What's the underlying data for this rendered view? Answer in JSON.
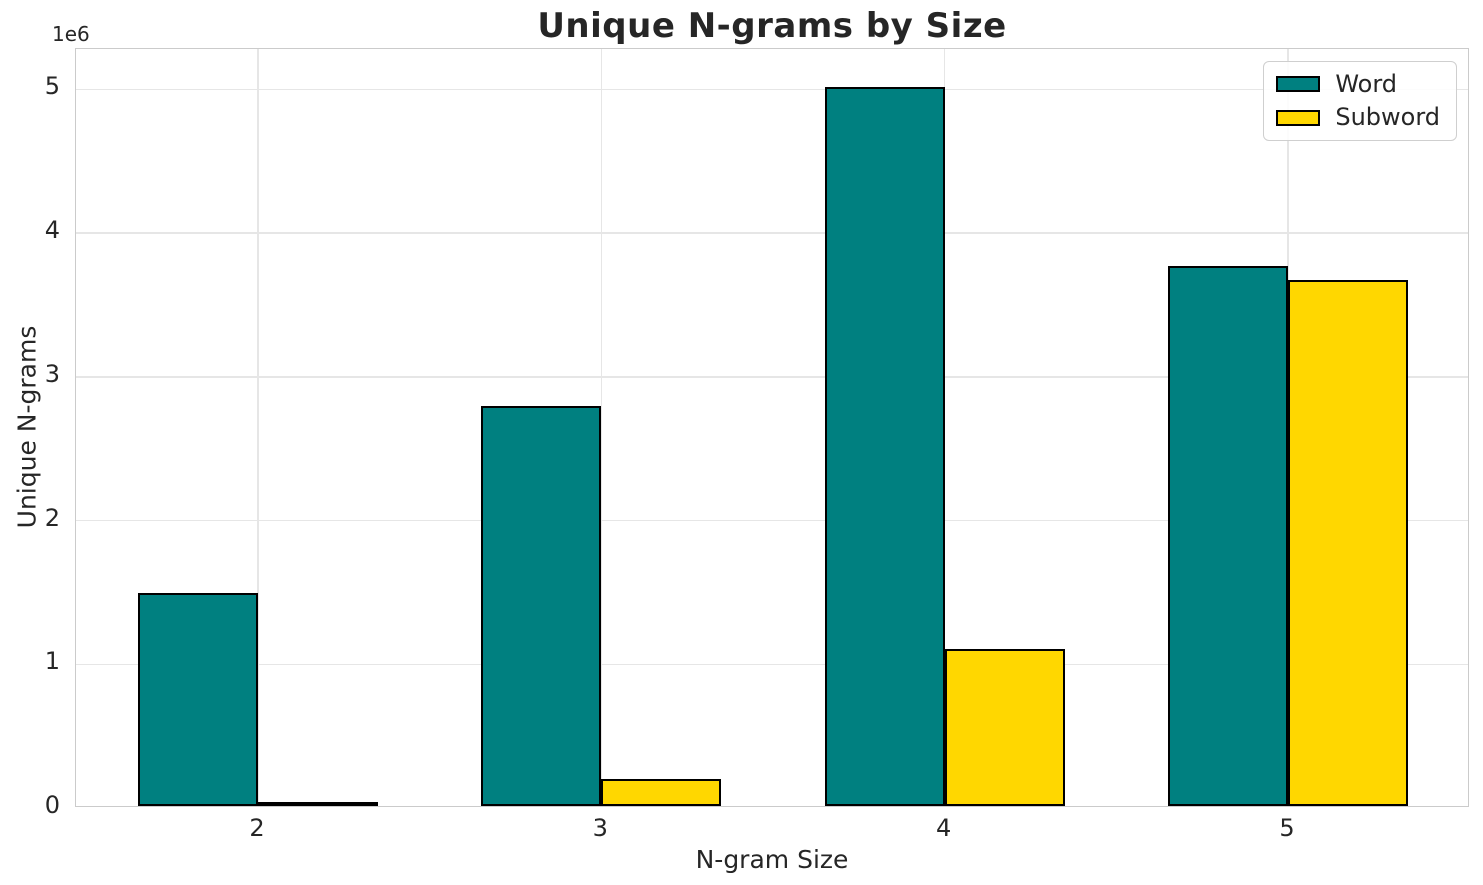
{
  "chart_data": {
    "type": "bar",
    "title": "Unique N-grams by Size",
    "xlabel": "N-gram Size",
    "ylabel": "Unique N-grams",
    "y_offset_label": "1e6",
    "categories": [
      "2",
      "3",
      "4",
      "5"
    ],
    "series": [
      {
        "name": "Word",
        "color": "#008080",
        "values": [
          1480000,
          2780000,
          5000000,
          3760000
        ]
      },
      {
        "name": "Subword",
        "color": "#FFD700",
        "values": [
          30000,
          185000,
          1090000,
          3660000
        ]
      }
    ],
    "bar_edge_color": "#000000",
    "bar_width_units": 0.35,
    "xlim": [
      1.47,
      5.53
    ],
    "ylim": [
      0,
      5280000
    ],
    "yticks": [
      {
        "value": 0,
        "label": "0"
      },
      {
        "value": 1000000,
        "label": "1"
      },
      {
        "value": 2000000,
        "label": "2"
      },
      {
        "value": 3000000,
        "label": "3"
      },
      {
        "value": 4000000,
        "label": "4"
      },
      {
        "value": 5000000,
        "label": "5"
      }
    ],
    "grid": true,
    "legend_position": "upper right",
    "colors": {
      "grid": "#e6e6e6",
      "spine": "#cbcbcb",
      "text": "#262626",
      "background": "#ffffff"
    }
  }
}
